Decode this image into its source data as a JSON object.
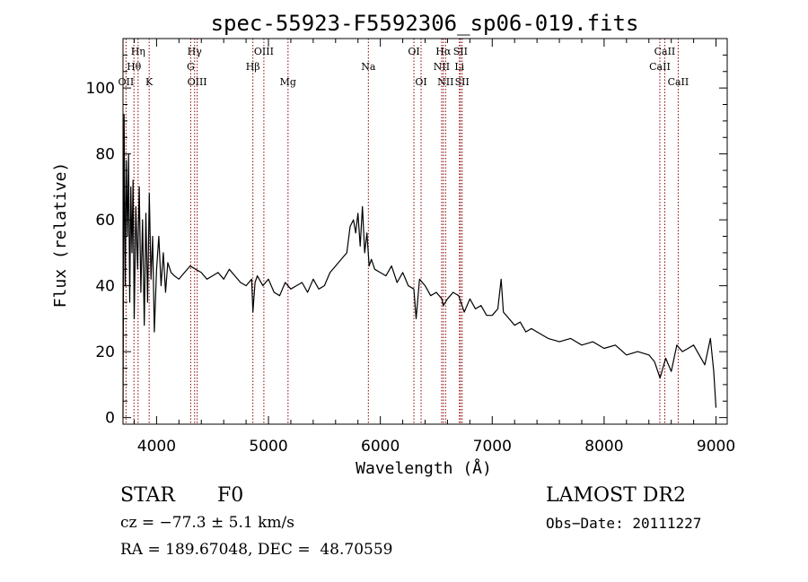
{
  "chart_data": {
    "type": "line",
    "title": "spec-55923-F5592306_sp06-019.fits",
    "xlabel": "Wavelength (Å)",
    "ylabel": "Flux (relative)",
    "xlim": [
      3700,
      9100
    ],
    "ylim": [
      -2,
      115
    ],
    "xticks": [
      4000,
      5000,
      6000,
      7000,
      8000,
      9000
    ],
    "yticks": [
      0,
      20,
      40,
      60,
      80,
      100
    ],
    "grid": false,
    "line_color": "#000000",
    "marker_color": "#8b0000",
    "series": [
      {
        "x": [
          3700,
          3710,
          3720,
          3730,
          3740,
          3750,
          3760,
          3770,
          3780,
          3790,
          3800,
          3815,
          3830,
          3845,
          3860,
          3875,
          3890,
          3905,
          3920,
          3935,
          3950,
          3965,
          3980,
          4000,
          4020,
          4040,
          4060,
          4080,
          4100,
          4130,
          4160,
          4200,
          4250,
          4300,
          4350,
          4400,
          4450,
          4500,
          4550,
          4600,
          4650,
          4700,
          4750,
          4800,
          4850,
          4861,
          4880,
          4900,
          4950,
          5000,
          5050,
          5100,
          5150,
          5200,
          5250,
          5300,
          5350,
          5400,
          5450,
          5500,
          5550,
          5600,
          5650,
          5700,
          5730,
          5760,
          5780,
          5800,
          5820,
          5840,
          5860,
          5880,
          5900,
          5920,
          5950,
          6000,
          6050,
          6100,
          6150,
          6200,
          6250,
          6300,
          6320,
          6350,
          6400,
          6450,
          6500,
          6550,
          6563,
          6600,
          6650,
          6700,
          6750,
          6800,
          6850,
          6900,
          6950,
          7000,
          7050,
          7080,
          7100,
          7150,
          7200,
          7250,
          7300,
          7350,
          7400,
          7500,
          7600,
          7700,
          7800,
          7900,
          8000,
          8100,
          8200,
          8300,
          8400,
          8450,
          8500,
          8550,
          8600,
          8650,
          8700,
          8750,
          8800,
          8850,
          8900,
          8950,
          8980,
          9000
        ],
        "y": [
          0,
          92,
          40,
          78,
          55,
          80,
          35,
          70,
          50,
          72,
          30,
          64,
          45,
          70,
          38,
          60,
          28,
          62,
          35,
          68,
          42,
          55,
          26,
          45,
          55,
          40,
          50,
          38,
          47,
          44,
          43,
          42,
          44,
          46,
          45,
          44,
          42,
          43,
          44,
          42,
          45,
          43,
          41,
          40,
          42,
          32,
          41,
          43,
          40,
          42,
          38,
          37,
          41,
          39,
          40,
          41,
          38,
          42,
          39,
          40,
          44,
          46,
          48,
          50,
          58,
          60,
          56,
          62,
          52,
          64,
          50,
          56,
          46,
          48,
          45,
          44,
          43,
          46,
          41,
          44,
          40,
          39,
          30,
          42,
          40,
          37,
          38,
          36,
          34,
          36,
          38,
          37,
          32,
          36,
          33,
          34,
          31,
          31,
          33,
          42,
          32,
          30,
          28,
          29,
          26,
          27,
          26,
          24,
          23,
          24,
          22,
          23,
          21,
          22,
          19,
          20,
          19,
          17,
          12,
          18,
          14,
          22,
          20,
          21,
          22,
          19,
          16,
          24,
          14,
          3
        ]
      }
    ],
    "lines": [
      {
        "label": "Hη",
        "x": 3835,
        "row": 1
      },
      {
        "label": "Hθ",
        "x": 3798,
        "row": 2
      },
      {
        "label": "OII",
        "x": 3727,
        "row": 3
      },
      {
        "label": "K",
        "x": 3934,
        "row": 3
      },
      {
        "label": "Hγ",
        "x": 4340,
        "row": 1
      },
      {
        "label": "G",
        "x": 4305,
        "row": 2
      },
      {
        "label": "OIII",
        "x": 4363,
        "row": 3
      },
      {
        "label": "OIII",
        "x": 4959,
        "row": 1
      },
      {
        "label": "Hβ",
        "x": 4861,
        "row": 2
      },
      {
        "label": "Mg",
        "x": 5175,
        "row": 3
      },
      {
        "label": "Na",
        "x": 5893,
        "row": 2
      },
      {
        "label": "OI",
        "x": 6300,
        "row": 1
      },
      {
        "label": "OI",
        "x": 6364,
        "row": 3
      },
      {
        "label": "Hα",
        "x": 6563,
        "row": 1
      },
      {
        "label": "SII",
        "x": 6716,
        "row": 1
      },
      {
        "label": "NII",
        "x": 6548,
        "row": 2
      },
      {
        "label": "Li",
        "x": 6707,
        "row": 2
      },
      {
        "label": "NII",
        "x": 6583,
        "row": 3
      },
      {
        "label": "SII",
        "x": 6731,
        "row": 3
      },
      {
        "label": "CaII",
        "x": 8542,
        "row": 1
      },
      {
        "label": "CaII",
        "x": 8498,
        "row": 2
      },
      {
        "label": "CaII",
        "x": 8662,
        "row": 3
      }
    ]
  },
  "info": {
    "class_label": "STAR",
    "subclass_label": "F0",
    "survey_label": "LAMOST DR2",
    "cz_label": "cz = −77.3 ± 5.1 km/s",
    "obs_date_label": "Obs−Date: 20111227",
    "radec_label": "RA = 189.67048, DEC =  48.70559"
  }
}
